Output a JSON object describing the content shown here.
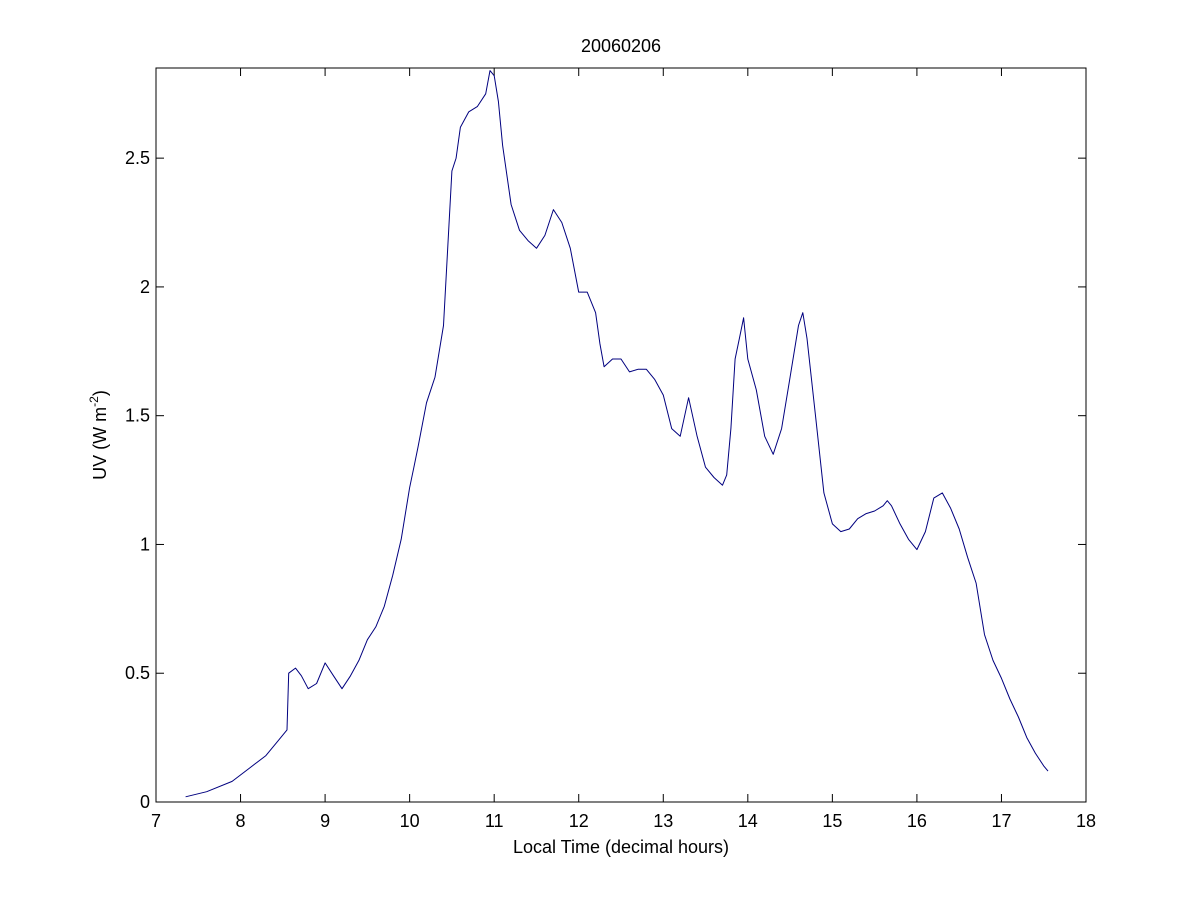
{
  "chart_data": {
    "type": "line",
    "title": "20060206",
    "xlabel": "Local Time (decimal hours)",
    "ylabel": {
      "prefix": "UV (W m",
      "superscript": "-2",
      "suffix": ")"
    },
    "xlim": [
      7,
      18
    ],
    "ylim": [
      0,
      2.85
    ],
    "xticks": [
      7,
      8,
      9,
      10,
      11,
      12,
      13,
      14,
      15,
      16,
      17,
      18
    ],
    "xtick_labels": [
      "7",
      "8",
      "9",
      "10",
      "11",
      "12",
      "13",
      "14",
      "15",
      "16",
      "17",
      "18"
    ],
    "yticks": [
      0,
      0.5,
      1,
      1.5,
      2,
      2.5
    ],
    "ytick_labels": [
      "0",
      "0.5",
      "1",
      "1.5",
      "2",
      "2.5"
    ],
    "grid": false,
    "legend": "none",
    "line_color": "#00007f",
    "series": [
      {
        "x": [
          7.35,
          7.6,
          7.9,
          8.1,
          8.3,
          8.45,
          8.55,
          8.57,
          8.65,
          8.72,
          8.8,
          8.9,
          9.0,
          9.1,
          9.2,
          9.3,
          9.4,
          9.5,
          9.6,
          9.7,
          9.8,
          9.9,
          10.0,
          10.05,
          10.1,
          10.2,
          10.3,
          10.4,
          10.45,
          10.5,
          10.55,
          10.6,
          10.7,
          10.8,
          10.9,
          10.95,
          11.0,
          11.05,
          11.1,
          11.2,
          11.3,
          11.4,
          11.5,
          11.6,
          11.7,
          11.8,
          11.9,
          12.0,
          12.1,
          12.2,
          12.25,
          12.3,
          12.4,
          12.5,
          12.6,
          12.7,
          12.8,
          12.9,
          13.0,
          13.1,
          13.2,
          13.3,
          13.4,
          13.5,
          13.6,
          13.7,
          13.75,
          13.8,
          13.85,
          13.9,
          13.95,
          14.0,
          14.1,
          14.2,
          14.3,
          14.4,
          14.5,
          14.6,
          14.65,
          14.7,
          14.8,
          14.9,
          15.0,
          15.1,
          15.2,
          15.3,
          15.4,
          15.5,
          15.6,
          15.65,
          15.7,
          15.8,
          15.9,
          16.0,
          16.1,
          16.2,
          16.3,
          16.4,
          16.5,
          16.6,
          16.7,
          16.8,
          16.9,
          17.0,
          17.1,
          17.2,
          17.3,
          17.4,
          17.5,
          17.55
        ],
        "y": [
          0.02,
          0.04,
          0.08,
          0.13,
          0.18,
          0.24,
          0.28,
          0.5,
          0.52,
          0.49,
          0.44,
          0.46,
          0.54,
          0.49,
          0.44,
          0.49,
          0.55,
          0.63,
          0.68,
          0.76,
          0.88,
          1.02,
          1.22,
          1.3,
          1.38,
          1.55,
          1.65,
          1.85,
          2.15,
          2.45,
          2.5,
          2.62,
          2.68,
          2.7,
          2.75,
          2.84,
          2.82,
          2.72,
          2.55,
          2.32,
          2.22,
          2.18,
          2.15,
          2.2,
          2.3,
          2.25,
          2.15,
          1.98,
          1.98,
          1.9,
          1.78,
          1.69,
          1.72,
          1.72,
          1.67,
          1.68,
          1.68,
          1.64,
          1.58,
          1.45,
          1.42,
          1.57,
          1.42,
          1.3,
          1.26,
          1.23,
          1.27,
          1.45,
          1.72,
          1.8,
          1.88,
          1.72,
          1.6,
          1.42,
          1.35,
          1.45,
          1.65,
          1.85,
          1.9,
          1.8,
          1.5,
          1.2,
          1.08,
          1.05,
          1.06,
          1.1,
          1.12,
          1.13,
          1.15,
          1.17,
          1.15,
          1.08,
          1.02,
          0.98,
          1.05,
          1.18,
          1.2,
          1.14,
          1.06,
          0.95,
          0.85,
          0.65,
          0.55,
          0.48,
          0.4,
          0.33,
          0.25,
          0.19,
          0.14,
          0.12
        ]
      }
    ]
  }
}
